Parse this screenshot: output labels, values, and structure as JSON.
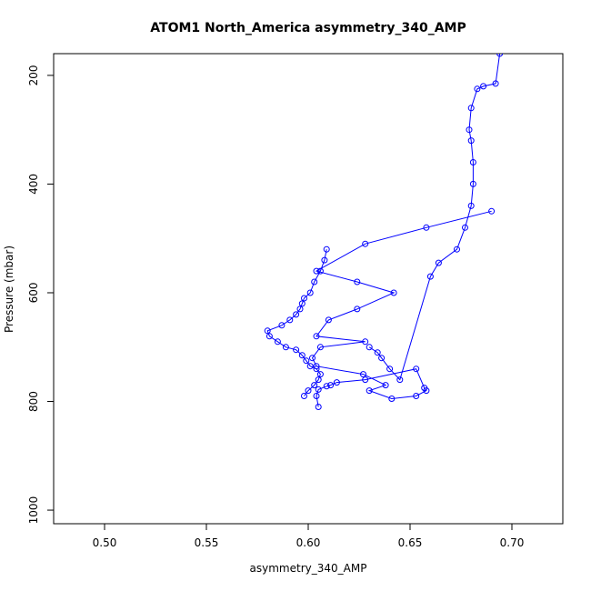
{
  "chart_data": {
    "type": "line",
    "title": "ATOM1 North_America asymmetry_340_AMP",
    "xlabel": "asymmetry_340_AMP",
    "ylabel": "Pressure (mbar)",
    "xlim": [
      0.475,
      0.725
    ],
    "ylim": [
      1025,
      160
    ],
    "y_reversed": true,
    "x_ticks": [
      0.5,
      0.55,
      0.6,
      0.65,
      0.7
    ],
    "x_tick_labels": [
      "0.50",
      "0.55",
      "0.60",
      "0.65",
      "0.70"
    ],
    "y_ticks": [
      200,
      400,
      600,
      800,
      1000
    ],
    "y_tick_labels": [
      "200",
      "400",
      "600",
      "800",
      "1000"
    ],
    "grid": false,
    "legend": "none",
    "line_color": "#0000ff",
    "marker": "open-circle",
    "series": [
      {
        "x": [
          0.605,
          0.604,
          0.605,
          0.609,
          0.611,
          0.614,
          0.628,
          0.653,
          0.657,
          0.658,
          0.653,
          0.641,
          0.63,
          0.638,
          0.627,
          0.604,
          0.602,
          0.606,
          0.628,
          0.604,
          0.61,
          0.624,
          0.642,
          0.624,
          0.604,
          0.628,
          0.658,
          0.69
        ],
        "y": [
          810,
          790,
          778,
          772,
          770,
          765,
          760,
          740,
          775,
          780,
          790,
          795,
          780,
          770,
          750,
          735,
          720,
          700,
          690,
          680,
          650,
          630,
          600,
          580,
          560,
          510,
          480,
          450
        ]
      },
      {
        "x": [
          0.598,
          0.6,
          0.603,
          0.605,
          0.606,
          0.604,
          0.601,
          0.599,
          0.597,
          0.594,
          0.589,
          0.585,
          0.581,
          0.58,
          0.587,
          0.591,
          0.594,
          0.596,
          0.597,
          0.598,
          0.601,
          0.603,
          0.606,
          0.608,
          0.609
        ],
        "y": [
          790,
          780,
          770,
          760,
          750,
          740,
          735,
          725,
          715,
          705,
          700,
          690,
          680,
          670,
          660,
          650,
          640,
          630,
          620,
          610,
          600,
          580,
          560,
          540,
          520
        ]
      },
      {
        "x": [
          0.63,
          0.634,
          0.636,
          0.64,
          0.645,
          0.66,
          0.664,
          0.673,
          0.677,
          0.68,
          0.681,
          0.681,
          0.68,
          0.679,
          0.68,
          0.683,
          0.686,
          0.692,
          0.694
        ],
        "y": [
          700,
          710,
          720,
          740,
          760,
          570,
          545,
          520,
          480,
          440,
          400,
          360,
          320,
          300,
          260,
          225,
          220,
          215,
          160
        ]
      }
    ]
  }
}
